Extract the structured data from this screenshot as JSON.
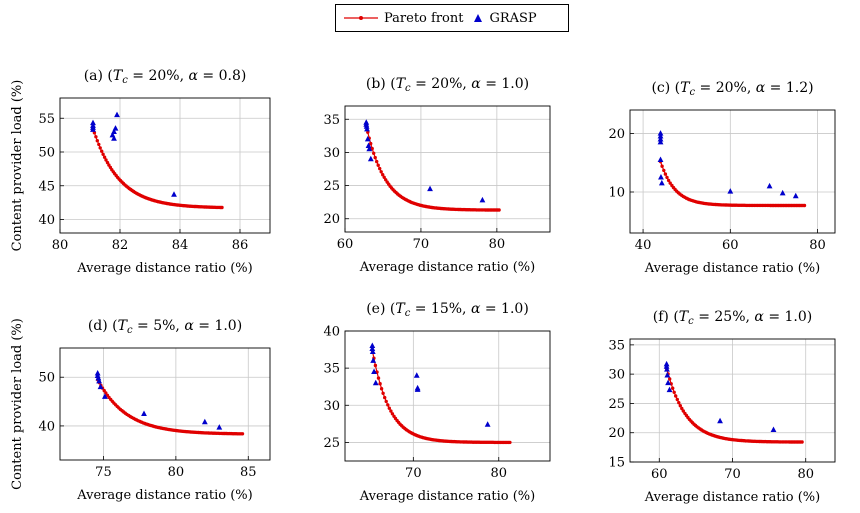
{
  "legend": {
    "pareto": "Pareto front",
    "grasp": "GRASP"
  },
  "colors": {
    "pareto": "#e00000",
    "grasp": "#0000cc",
    "grid": "#c8c8c8"
  },
  "ylabel_row": "Content provider load (%)",
  "chart_data": [
    {
      "type": "scatter",
      "title": "(a) (T_c = 20%, α = 0.8)",
      "title_parts": [
        "(a) (",
        "T",
        "c",
        " = 20%, ",
        "α",
        " = 0.8)"
      ],
      "xlabel": "Average distance ratio (%)",
      "ylabel": "Content provider load (%)",
      "xlim": [
        80,
        87
      ],
      "ylim": [
        38,
        58
      ],
      "xticks": [
        80,
        82,
        84,
        86
      ],
      "yticks": [
        40,
        45,
        50,
        55
      ],
      "grid": true,
      "series": [
        {
          "name": "Pareto front",
          "type": "line",
          "curve": {
            "x0": 81.1,
            "x1": 85.4,
            "y_start": 53.5,
            "y_end": 41.7,
            "k": 5
          }
        },
        {
          "name": "GRASP",
          "type": "scatter",
          "x": [
            81.1,
            81.1,
            81.1,
            81.1,
            81.8,
            81.75,
            81.8,
            81.85,
            81.9,
            83.8
          ],
          "y": [
            54.3,
            53.9,
            53.6,
            53.3,
            52.0,
            52.5,
            53.0,
            53.5,
            55.5,
            43.7
          ]
        }
      ]
    },
    {
      "type": "scatter",
      "title": "(b) (T_c = 20%, α = 1.0)",
      "title_parts": [
        "(b) (",
        "T",
        "c",
        " = 20%, ",
        "α",
        " = 1.0)"
      ],
      "xlabel": "Average distance ratio (%)",
      "ylabel": "",
      "xlim": [
        60,
        87
      ],
      "ylim": [
        18,
        37
      ],
      "xticks": [
        60,
        70,
        80
      ],
      "yticks": [
        20,
        25,
        30,
        35
      ],
      "grid": true,
      "series": [
        {
          "name": "Pareto front",
          "type": "line",
          "curve": {
            "x0": 62.8,
            "x1": 80.3,
            "y_start": 34,
            "y_end": 21.3,
            "k": 7
          }
        },
        {
          "name": "GRASP",
          "type": "scatter",
          "x": [
            62.8,
            62.8,
            62.85,
            62.9,
            63.0,
            63.1,
            63.2,
            63.4,
            71.2,
            78.1
          ],
          "y": [
            34.5,
            34.2,
            33.9,
            33.5,
            32.0,
            31.0,
            30.5,
            29.0,
            24.5,
            22.8
          ]
        }
      ]
    },
    {
      "type": "scatter",
      "title": "(c) (T_c = 20%, α = 1.2)",
      "title_parts": [
        "(c) (",
        "T",
        "c",
        " = 20%, ",
        "α",
        " = 1.2)"
      ],
      "xlabel": "Average distance ratio (%)",
      "ylabel": "",
      "xlim": [
        37,
        84
      ],
      "ylim": [
        3,
        24
      ],
      "xticks": [
        40,
        60,
        80
      ],
      "yticks": [
        10,
        20
      ],
      "grid": true,
      "series": [
        {
          "name": "Pareto front",
          "type": "line",
          "curve": {
            "x0": 44.0,
            "x1": 77.0,
            "y_start": 15.2,
            "y_end": 7.7,
            "k": 10
          }
        },
        {
          "name": "GRASP",
          "type": "scatter",
          "x": [
            44.0,
            44.0,
            44.0,
            44.0,
            44.0,
            44.1,
            44.3,
            60.0,
            69.0,
            72.0,
            75.0
          ],
          "y": [
            20.0,
            19.5,
            19.0,
            18.5,
            15.5,
            12.5,
            11.5,
            10.1,
            11.0,
            9.8,
            9.3
          ]
        }
      ]
    },
    {
      "type": "scatter",
      "title": "(d) (T_c = 5%, α = 1.0)",
      "title_parts": [
        "(d) (",
        "T",
        "c",
        " = 5%, ",
        "α",
        " = 1.0)"
      ],
      "xlabel": "Average distance ratio (%)",
      "ylabel": "Content provider load (%)",
      "xlim": [
        72,
        86.5
      ],
      "ylim": [
        33,
        56
      ],
      "xticks": [
        75,
        80,
        85
      ],
      "yticks": [
        40,
        50
      ],
      "grid": true,
      "series": [
        {
          "name": "Pareto front",
          "type": "line",
          "curve": {
            "x0": 74.6,
            "x1": 84.6,
            "y_start": 49.5,
            "y_end": 38.3,
            "k": 5
          }
        },
        {
          "name": "GRASP",
          "type": "scatter",
          "x": [
            74.6,
            74.6,
            74.65,
            74.7,
            74.8,
            75.1,
            77.8,
            82.0,
            83.0
          ],
          "y": [
            50.8,
            50.3,
            49.8,
            49.2,
            48.0,
            46.0,
            42.5,
            40.8,
            39.7
          ]
        }
      ]
    },
    {
      "type": "scatter",
      "title": "(e) (T_c = 15%, α = 1.0)",
      "title_parts": [
        "(e) (",
        "T",
        "c",
        " = 15%, ",
        "α",
        " = 1.0)"
      ],
      "xlabel": "Average distance ratio (%)",
      "ylabel": "",
      "xlim": [
        62,
        86
      ],
      "ylim": [
        22.5,
        40
      ],
      "xticks": [
        70,
        80
      ],
      "yticks": [
        25,
        30,
        35,
        40
      ],
      "grid": true,
      "series": [
        {
          "name": "Pareto front",
          "type": "line",
          "curve": {
            "x0": 65.2,
            "x1": 81.3,
            "y_start": 37.4,
            "y_end": 25.0,
            "k": 8
          }
        },
        {
          "name": "GRASP",
          "type": "scatter",
          "x": [
            65.2,
            65.2,
            65.25,
            65.3,
            65.4,
            65.6,
            70.4,
            70.5,
            70.5,
            78.7
          ],
          "y": [
            38.0,
            37.6,
            37.2,
            36.0,
            34.5,
            33.0,
            34.0,
            32.3,
            32.1,
            27.4
          ]
        }
      ]
    },
    {
      "type": "scatter",
      "title": "(f) (T_c = 25%, α = 1.0)",
      "title_parts": [
        "(f) (",
        "T",
        "c",
        " = 25%, ",
        "α",
        " = 1.0)"
      ],
      "xlabel": "Average distance ratio (%)",
      "ylabel": "",
      "xlim": [
        56,
        84
      ],
      "ylim": [
        15,
        36
      ],
      "xticks": [
        60,
        70,
        80
      ],
      "yticks": [
        15,
        20,
        25,
        30,
        35
      ],
      "grid": true,
      "series": [
        {
          "name": "Pareto front",
          "type": "line",
          "curve": {
            "x0": 61.0,
            "x1": 79.5,
            "y_start": 31.0,
            "y_end": 18.4,
            "k": 7
          }
        },
        {
          "name": "GRASP",
          "type": "scatter",
          "x": [
            61.0,
            61.0,
            61.05,
            61.1,
            61.2,
            61.4,
            68.3,
            75.6
          ],
          "y": [
            31.7,
            31.3,
            30.8,
            29.8,
            28.5,
            27.3,
            22.0,
            20.5
          ]
        }
      ]
    }
  ]
}
